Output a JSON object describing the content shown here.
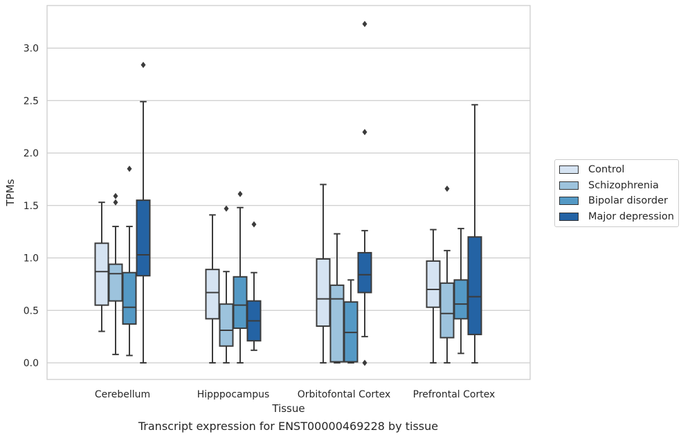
{
  "chart_data": {
    "type": "box",
    "xlabel": "Tissue",
    "ylabel": "TPMs",
    "caption": "Transcript expression for ENST00000469228 by tissue",
    "categories": [
      "Cerebellum",
      "Hipppocampus",
      "Orbitofontal Cortex",
      "Prefrontal Cortex"
    ],
    "ylim": [
      -0.16,
      3.4
    ],
    "yticks": [
      "0.0",
      "0.5",
      "1.0",
      "1.5",
      "2.0",
      "2.5",
      "3.0"
    ],
    "grid": "horizontal",
    "legend_position": "right",
    "series": [
      {
        "name": "Control",
        "color": "#d5e3f2",
        "boxes": [
          {
            "q1": 0.55,
            "median": 0.87,
            "q3": 1.14,
            "whislo": 0.3,
            "whishi": 1.53,
            "fliers": []
          },
          {
            "q1": 0.42,
            "median": 0.67,
            "q3": 0.89,
            "whislo": 0.0,
            "whishi": 1.41,
            "fliers": []
          },
          {
            "q1": 0.35,
            "median": 0.61,
            "q3": 0.99,
            "whislo": 0.0,
            "whishi": 1.7,
            "fliers": []
          },
          {
            "q1": 0.53,
            "median": 0.7,
            "q3": 0.97,
            "whislo": 0.0,
            "whishi": 1.27,
            "fliers": []
          }
        ]
      },
      {
        "name": "Schizophrenia",
        "color": "#9dc3dd",
        "boxes": [
          {
            "q1": 0.59,
            "median": 0.85,
            "q3": 0.94,
            "whislo": 0.08,
            "whishi": 1.3,
            "fliers": [
              1.53,
              1.59
            ]
          },
          {
            "q1": 0.16,
            "median": 0.31,
            "q3": 0.56,
            "whislo": 0.0,
            "whishi": 0.87,
            "fliers": [
              1.47
            ]
          },
          {
            "q1": 0.01,
            "median": 0.61,
            "q3": 0.74,
            "whislo": 0.0,
            "whishi": 1.23,
            "fliers": []
          },
          {
            "q1": 0.24,
            "median": 0.47,
            "q3": 0.76,
            "whislo": 0.0,
            "whishi": 1.07,
            "fliers": [
              1.66
            ]
          }
        ]
      },
      {
        "name": "Bipolar disorder",
        "color": "#5499c5",
        "boxes": [
          {
            "q1": 0.37,
            "median": 0.53,
            "q3": 0.86,
            "whislo": 0.07,
            "whishi": 1.3,
            "fliers": [
              1.85
            ]
          },
          {
            "q1": 0.33,
            "median": 0.55,
            "q3": 0.82,
            "whislo": 0.0,
            "whishi": 1.48,
            "fliers": [
              1.61
            ]
          },
          {
            "q1": 0.01,
            "median": 0.29,
            "q3": 0.58,
            "whislo": 0.0,
            "whishi": 0.79,
            "fliers": []
          },
          {
            "q1": 0.42,
            "median": 0.56,
            "q3": 0.79,
            "whislo": 0.09,
            "whishi": 1.28,
            "fliers": []
          }
        ]
      },
      {
        "name": "Major depression",
        "color": "#2463a4",
        "boxes": [
          {
            "q1": 0.83,
            "median": 1.03,
            "q3": 1.55,
            "whislo": 0.0,
            "whishi": 2.49,
            "fliers": [
              2.84
            ]
          },
          {
            "q1": 0.21,
            "median": 0.4,
            "q3": 0.59,
            "whislo": 0.12,
            "whishi": 0.86,
            "fliers": [
              1.32
            ]
          },
          {
            "q1": 0.67,
            "median": 0.84,
            "q3": 1.05,
            "whislo": 0.25,
            "whishi": 1.26,
            "fliers": [
              0.0,
              2.2,
              3.23
            ]
          },
          {
            "q1": 0.27,
            "median": 0.63,
            "q3": 1.2,
            "whislo": 0.0,
            "whishi": 2.46,
            "fliers": []
          }
        ]
      }
    ]
  }
}
